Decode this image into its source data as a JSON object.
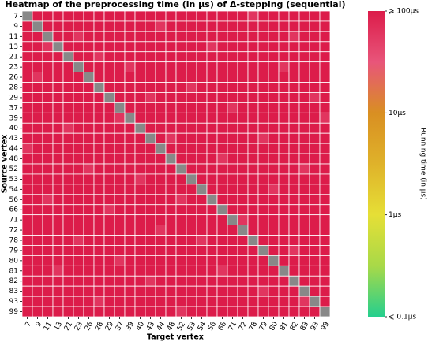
{
  "chart_data": {
    "type": "heatmap",
    "title": "Heatmap of the preprocessing time (in μs) of Δ-stepping (sequential)",
    "x_label": "Target vertex",
    "y_label": "Source vertex",
    "colorbar_label": "Running time (in μs)",
    "x_categories": [
      "7",
      "9",
      "11",
      "13",
      "21",
      "23",
      "26",
      "28",
      "29",
      "37",
      "39",
      "40",
      "43",
      "44",
      "48",
      "52",
      "53",
      "54",
      "56",
      "66",
      "71",
      "72",
      "78",
      "79",
      "80",
      "81",
      "82",
      "83",
      "93",
      "99"
    ],
    "y_categories": [
      "7",
      "9",
      "11",
      "13",
      "21",
      "23",
      "26",
      "28",
      "29",
      "37",
      "39",
      "40",
      "43",
      "44",
      "48",
      "52",
      "53",
      "54",
      "56",
      "66",
      "71",
      "72",
      "78",
      "79",
      "80",
      "81",
      "82",
      "83",
      "93",
      "99"
    ],
    "clim": [
      0.1,
      100
    ],
    "log_scale": true,
    "cticks": [
      {
        "value": 100,
        "label": "⩾ 100μs"
      },
      {
        "value": 10,
        "label": "10μs"
      },
      {
        "value": 1,
        "label": "1μs"
      },
      {
        "value": 0.1,
        "label": "⩽ 0.1μs"
      }
    ],
    "colormap": [
      "#25cf8e",
      "#a8d948",
      "#e6df36",
      "#dfb22a",
      "#d98f22",
      "#e8557a",
      "#dc1c4a"
    ],
    "missing_color": "#888888",
    "values": [
      [
        null,
        100,
        100,
        100,
        100,
        100,
        100,
        100,
        100,
        100,
        100,
        100,
        100,
        100,
        100,
        100,
        100,
        100,
        100,
        100,
        100,
        100,
        60,
        100,
        100,
        100,
        100,
        100,
        100,
        100
      ],
      [
        100,
        null,
        100,
        100,
        100,
        100,
        100,
        100,
        100,
        100,
        100,
        100,
        100,
        60,
        100,
        100,
        100,
        100,
        100,
        100,
        100,
        100,
        100,
        100,
        100,
        100,
        100,
        100,
        100,
        100
      ],
      [
        100,
        100,
        null,
        100,
        100,
        60,
        100,
        100,
        100,
        100,
        100,
        100,
        100,
        100,
        100,
        100,
        100,
        100,
        100,
        100,
        100,
        100,
        100,
        100,
        100,
        100,
        60,
        100,
        100,
        100
      ],
      [
        100,
        100,
        60,
        null,
        100,
        100,
        100,
        100,
        100,
        100,
        100,
        100,
        100,
        100,
        100,
        100,
        100,
        100,
        60,
        100,
        100,
        100,
        100,
        100,
        100,
        100,
        100,
        100,
        100,
        100
      ],
      [
        100,
        100,
        100,
        100,
        null,
        100,
        100,
        60,
        100,
        100,
        100,
        100,
        100,
        100,
        100,
        100,
        100,
        100,
        100,
        100,
        100,
        100,
        100,
        100,
        100,
        100,
        100,
        100,
        100,
        100
      ],
      [
        100,
        100,
        100,
        100,
        100,
        null,
        100,
        100,
        100,
        100,
        60,
        100,
        100,
        100,
        100,
        100,
        100,
        100,
        100,
        100,
        100,
        100,
        100,
        100,
        100,
        60,
        100,
        100,
        100,
        100
      ],
      [
        100,
        60,
        100,
        100,
        100,
        100,
        null,
        100,
        100,
        100,
        100,
        100,
        100,
        100,
        100,
        100,
        100,
        100,
        100,
        100,
        100,
        100,
        100,
        100,
        100,
        100,
        100,
        100,
        100,
        100
      ],
      [
        100,
        100,
        100,
        100,
        100,
        100,
        100,
        null,
        100,
        100,
        100,
        100,
        100,
        100,
        100,
        100,
        60,
        100,
        100,
        100,
        100,
        100,
        100,
        100,
        100,
        100,
        100,
        100,
        100,
        100
      ],
      [
        100,
        100,
        100,
        100,
        100,
        100,
        100,
        100,
        null,
        100,
        100,
        100,
        60,
        100,
        100,
        100,
        100,
        100,
        100,
        100,
        100,
        100,
        100,
        100,
        100,
        100,
        100,
        100,
        60,
        100
      ],
      [
        100,
        100,
        100,
        100,
        100,
        100,
        100,
        100,
        100,
        null,
        100,
        100,
        100,
        100,
        100,
        100,
        100,
        100,
        100,
        100,
        60,
        100,
        100,
        100,
        100,
        100,
        100,
        100,
        100,
        100
      ],
      [
        100,
        100,
        100,
        100,
        100,
        100,
        100,
        100,
        100,
        60,
        null,
        100,
        100,
        100,
        100,
        100,
        100,
        100,
        100,
        100,
        100,
        100,
        100,
        100,
        100,
        100,
        100,
        100,
        100,
        60
      ],
      [
        100,
        100,
        100,
        100,
        60,
        100,
        100,
        100,
        100,
        100,
        100,
        null,
        100,
        100,
        100,
        100,
        100,
        100,
        100,
        100,
        100,
        100,
        100,
        100,
        100,
        100,
        100,
        100,
        100,
        100
      ],
      [
        100,
        100,
        100,
        100,
        100,
        100,
        100,
        100,
        100,
        100,
        100,
        100,
        null,
        100,
        60,
        100,
        100,
        100,
        100,
        100,
        100,
        100,
        100,
        60,
        100,
        100,
        100,
        100,
        100,
        100
      ],
      [
        60,
        100,
        100,
        100,
        100,
        100,
        100,
        100,
        100,
        100,
        100,
        100,
        100,
        null,
        100,
        100,
        100,
        100,
        100,
        100,
        100,
        100,
        100,
        100,
        100,
        100,
        100,
        100,
        100,
        100
      ],
      [
        100,
        100,
        100,
        100,
        100,
        100,
        100,
        100,
        100,
        100,
        100,
        100,
        100,
        100,
        null,
        100,
        100,
        100,
        100,
        60,
        100,
        100,
        100,
        100,
        100,
        100,
        100,
        100,
        100,
        100
      ],
      [
        100,
        100,
        100,
        100,
        100,
        100,
        60,
        100,
        100,
        100,
        100,
        100,
        100,
        100,
        100,
        null,
        100,
        100,
        100,
        100,
        100,
        100,
        100,
        100,
        100,
        100,
        100,
        60,
        100,
        100
      ],
      [
        100,
        100,
        100,
        100,
        100,
        100,
        100,
        100,
        100,
        100,
        100,
        60,
        100,
        100,
        100,
        100,
        null,
        100,
        100,
        100,
        100,
        100,
        100,
        100,
        100,
        100,
        100,
        100,
        100,
        100
      ],
      [
        100,
        100,
        100,
        100,
        100,
        100,
        100,
        100,
        100,
        100,
        100,
        100,
        100,
        100,
        100,
        100,
        100,
        null,
        100,
        100,
        100,
        100,
        100,
        100,
        60,
        100,
        100,
        100,
        100,
        100
      ],
      [
        100,
        100,
        60,
        100,
        100,
        100,
        100,
        100,
        100,
        100,
        100,
        100,
        100,
        100,
        100,
        60,
        100,
        100,
        null,
        100,
        100,
        100,
        100,
        100,
        100,
        100,
        100,
        100,
        100,
        100
      ],
      [
        100,
        100,
        100,
        100,
        100,
        100,
        100,
        100,
        60,
        100,
        100,
        100,
        100,
        100,
        100,
        100,
        100,
        100,
        100,
        null,
        100,
        100,
        100,
        100,
        100,
        100,
        100,
        100,
        100,
        100
      ],
      [
        100,
        100,
        100,
        100,
        100,
        100,
        100,
        100,
        100,
        100,
        100,
        100,
        100,
        100,
        100,
        100,
        100,
        100,
        100,
        100,
        null,
        60,
        100,
        100,
        100,
        100,
        100,
        100,
        100,
        100
      ],
      [
        100,
        100,
        100,
        100,
        100,
        100,
        100,
        100,
        100,
        100,
        100,
        100,
        100,
        60,
        100,
        100,
        100,
        100,
        100,
        100,
        100,
        null,
        100,
        100,
        100,
        100,
        100,
        100,
        100,
        100
      ],
      [
        100,
        100,
        100,
        100,
        100,
        60,
        100,
        100,
        100,
        100,
        100,
        100,
        100,
        100,
        100,
        100,
        100,
        60,
        100,
        100,
        100,
        100,
        null,
        100,
        100,
        100,
        100,
        100,
        100,
        100
      ],
      [
        100,
        100,
        100,
        100,
        100,
        100,
        100,
        100,
        100,
        100,
        100,
        100,
        100,
        100,
        100,
        100,
        100,
        100,
        100,
        100,
        100,
        100,
        100,
        null,
        100,
        100,
        60,
        100,
        100,
        100
      ],
      [
        100,
        100,
        100,
        100,
        100,
        100,
        100,
        100,
        100,
        60,
        100,
        100,
        100,
        100,
        100,
        100,
        100,
        100,
        100,
        100,
        100,
        100,
        100,
        100,
        null,
        100,
        100,
        100,
        100,
        100
      ],
      [
        100,
        100,
        100,
        60,
        100,
        100,
        100,
        100,
        100,
        100,
        100,
        100,
        100,
        100,
        100,
        100,
        100,
        100,
        100,
        60,
        100,
        100,
        100,
        100,
        100,
        null,
        100,
        100,
        100,
        100
      ],
      [
        100,
        100,
        100,
        100,
        100,
        100,
        100,
        100,
        100,
        100,
        100,
        100,
        60,
        100,
        100,
        100,
        100,
        100,
        100,
        100,
        100,
        100,
        100,
        100,
        100,
        100,
        null,
        100,
        100,
        100
      ],
      [
        100,
        100,
        100,
        100,
        100,
        100,
        100,
        100,
        100,
        100,
        100,
        100,
        100,
        100,
        100,
        100,
        100,
        100,
        100,
        100,
        100,
        100,
        100,
        60,
        100,
        100,
        100,
        null,
        100,
        100
      ],
      [
        100,
        100,
        100,
        100,
        100,
        100,
        100,
        60,
        100,
        100,
        100,
        100,
        100,
        100,
        100,
        100,
        100,
        100,
        100,
        100,
        100,
        100,
        100,
        100,
        100,
        100,
        100,
        60,
        null,
        100
      ],
      [
        100,
        100,
        100,
        100,
        100,
        100,
        100,
        100,
        100,
        100,
        100,
        100,
        100,
        100,
        100,
        60,
        100,
        100,
        100,
        100,
        100,
        100,
        100,
        100,
        100,
        100,
        100,
        100,
        100,
        null
      ]
    ]
  }
}
